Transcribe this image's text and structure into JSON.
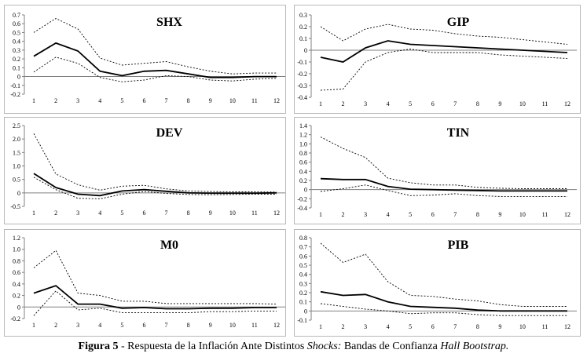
{
  "caption": {
    "label": "Figura 5",
    "text": " - Respuesta de la Inflación Ante Distintos ",
    "shocks": "Shocks:",
    "text2": " Bandas de Confianza ",
    "method": "Hall Bootstrap."
  },
  "colors": {
    "main_line": "#000000",
    "band_line": "#000000",
    "axis": "#808080",
    "frame": "#b9b9b9"
  },
  "chart_data": [
    {
      "type": "line",
      "title": "SHX",
      "x": [
        1,
        2,
        3,
        4,
        5,
        6,
        7,
        8,
        9,
        10,
        11,
        12
      ],
      "ylim": [
        -0.2,
        0.7
      ],
      "yticks": [
        -0.2,
        -0.1,
        0,
        0.1,
        0.2,
        0.3,
        0.4,
        0.5,
        0.6,
        0.7
      ],
      "series": [
        {
          "role": "upper",
          "values": [
            0.5,
            0.66,
            0.54,
            0.21,
            0.13,
            0.15,
            0.17,
            0.11,
            0.06,
            0.03,
            0.04,
            0.04
          ]
        },
        {
          "role": "point",
          "values": [
            0.23,
            0.38,
            0.29,
            0.06,
            0.01,
            0.06,
            0.07,
            0.03,
            -0.01,
            -0.01,
            0.0,
            0.0
          ]
        },
        {
          "role": "lower",
          "values": [
            0.05,
            0.22,
            0.15,
            -0.01,
            -0.06,
            -0.04,
            0.01,
            0.0,
            -0.04,
            -0.05,
            -0.03,
            -0.02
          ]
        }
      ]
    },
    {
      "type": "line",
      "title": "GIP",
      "x": [
        1,
        2,
        3,
        4,
        5,
        6,
        7,
        8,
        9,
        10,
        11,
        12
      ],
      "ylim": [
        -0.4,
        0.3
      ],
      "yticks": [
        -0.4,
        -0.3,
        -0.2,
        -0.1,
        0,
        0.1,
        0.2,
        0.3
      ],
      "series": [
        {
          "role": "upper",
          "values": [
            0.2,
            0.08,
            0.18,
            0.22,
            0.18,
            0.17,
            0.14,
            0.12,
            0.11,
            0.09,
            0.07,
            0.05
          ]
        },
        {
          "role": "point",
          "values": [
            -0.06,
            -0.1,
            0.02,
            0.08,
            0.05,
            0.04,
            0.03,
            0.02,
            0.01,
            0.0,
            -0.01,
            -0.02
          ]
        },
        {
          "role": "lower",
          "values": [
            -0.34,
            -0.33,
            -0.1,
            -0.02,
            0.01,
            -0.02,
            -0.02,
            -0.02,
            -0.04,
            -0.05,
            -0.06,
            -0.07
          ]
        }
      ]
    },
    {
      "type": "line",
      "title": "DEV",
      "x": [
        1,
        2,
        3,
        4,
        5,
        6,
        7,
        8,
        9,
        10,
        11,
        12
      ],
      "ylim": [
        -0.5,
        2.5
      ],
      "yticks": [
        -0.5,
        0,
        0.5,
        1,
        1.5,
        2,
        2.5
      ],
      "series": [
        {
          "role": "upper",
          "values": [
            2.2,
            0.7,
            0.3,
            0.1,
            0.25,
            0.28,
            0.15,
            0.07,
            0.05,
            0.04,
            0.04,
            0.03
          ]
        },
        {
          "role": "point",
          "values": [
            0.72,
            0.2,
            -0.05,
            -0.1,
            0.07,
            0.12,
            0.06,
            0.0,
            -0.01,
            -0.01,
            -0.01,
            0.0
          ]
        },
        {
          "role": "lower",
          "values": [
            0.58,
            0.12,
            -0.2,
            -0.22,
            -0.05,
            0.05,
            -0.02,
            -0.06,
            -0.07,
            -0.06,
            -0.05,
            -0.05
          ]
        }
      ]
    },
    {
      "type": "line",
      "title": "TIN",
      "x": [
        1,
        2,
        3,
        4,
        5,
        6,
        7,
        8,
        9,
        10,
        11,
        12
      ],
      "ylim": [
        -0.4,
        1.4
      ],
      "yticks": [
        -0.4,
        -0.2,
        0,
        0.2,
        0.4,
        0.6,
        0.8,
        1.0,
        1.2,
        1.4
      ],
      "series": [
        {
          "role": "upper",
          "values": [
            1.15,
            0.9,
            0.7,
            0.25,
            0.15,
            0.1,
            0.1,
            0.05,
            0.03,
            0.02,
            0.02,
            0.02
          ]
        },
        {
          "role": "point",
          "values": [
            0.24,
            0.22,
            0.22,
            0.07,
            0.01,
            0.0,
            -0.01,
            -0.02,
            -0.03,
            -0.03,
            -0.03,
            -0.03
          ]
        },
        {
          "role": "lower",
          "values": [
            -0.04,
            0.02,
            0.1,
            -0.02,
            -0.13,
            -0.12,
            -0.09,
            -0.13,
            -0.15,
            -0.15,
            -0.15,
            -0.15
          ]
        }
      ]
    },
    {
      "type": "line",
      "title": "M0",
      "x": [
        1,
        2,
        3,
        4,
        5,
        6,
        7,
        8,
        9,
        10,
        11,
        12
      ],
      "ylim": [
        -0.2,
        1.2
      ],
      "yticks": [
        -0.2,
        0,
        0.2,
        0.4,
        0.6,
        0.8,
        1.0,
        1.2
      ],
      "series": [
        {
          "role": "upper",
          "values": [
            0.68,
            0.98,
            0.24,
            0.2,
            0.1,
            0.1,
            0.06,
            0.06,
            0.06,
            0.06,
            0.06,
            0.05
          ]
        },
        {
          "role": "point",
          "values": [
            0.24,
            0.37,
            0.05,
            0.05,
            -0.02,
            -0.01,
            -0.03,
            -0.03,
            -0.02,
            -0.02,
            -0.01,
            -0.01
          ]
        },
        {
          "role": "lower",
          "values": [
            -0.15,
            0.28,
            -0.05,
            -0.02,
            -0.1,
            -0.1,
            -0.1,
            -0.1,
            -0.08,
            -0.08,
            -0.07,
            -0.07
          ]
        }
      ]
    },
    {
      "type": "line",
      "title": "PIB",
      "x": [
        1,
        2,
        3,
        4,
        5,
        6,
        7,
        8,
        9,
        10,
        11,
        12
      ],
      "ylim": [
        -0.1,
        0.8
      ],
      "yticks": [
        -0.1,
        0,
        0.1,
        0.2,
        0.3,
        0.4,
        0.5,
        0.6,
        0.7,
        0.8
      ],
      "series": [
        {
          "role": "upper",
          "values": [
            0.74,
            0.53,
            0.62,
            0.32,
            0.17,
            0.16,
            0.13,
            0.11,
            0.07,
            0.05,
            0.05,
            0.05
          ]
        },
        {
          "role": "point",
          "values": [
            0.21,
            0.17,
            0.18,
            0.1,
            0.05,
            0.04,
            0.03,
            0.01,
            0.0,
            0.0,
            0.0,
            0.0
          ]
        },
        {
          "role": "lower",
          "values": [
            0.08,
            0.05,
            0.02,
            0.0,
            -0.03,
            -0.02,
            -0.02,
            -0.04,
            -0.05,
            -0.05,
            -0.05,
            -0.05
          ]
        }
      ]
    }
  ]
}
